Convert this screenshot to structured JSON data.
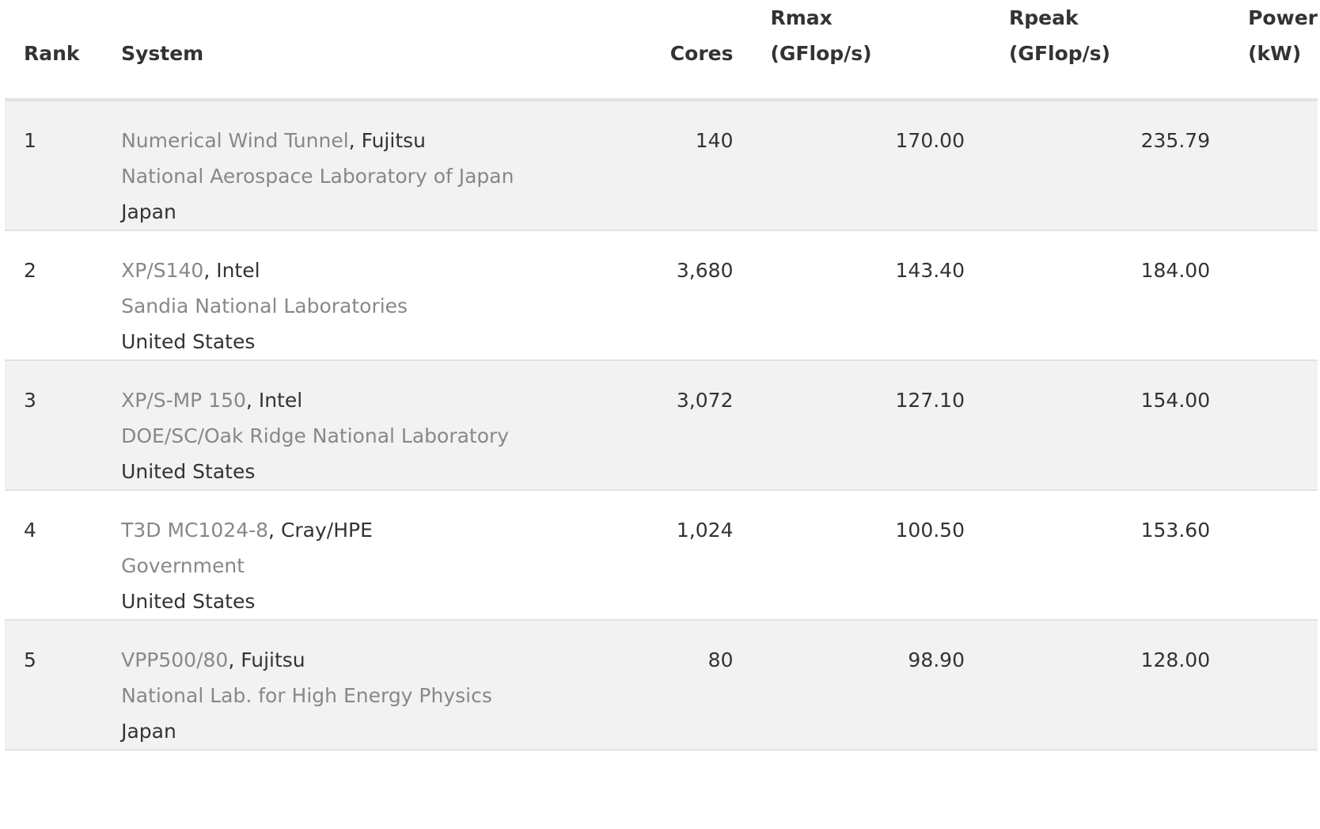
{
  "headers": {
    "rank": "Rank",
    "system": "System",
    "cores": "Cores",
    "rmax_1": "Rmax",
    "rmax_2": "(GFlop/s)",
    "rpeak_1": "Rpeak",
    "rpeak_2": "(GFlop/s)",
    "power_1": "Power",
    "power_2": "(kW)"
  },
  "rows": [
    {
      "rank": "1",
      "system": "Numerical Wind Tunnel",
      "vendor": ", Fujitsu",
      "site": "National Aerospace Laboratory of Japan",
      "country": "Japan",
      "cores": "140",
      "rmax": "170.00",
      "rpeak": "235.79",
      "power": ""
    },
    {
      "rank": "2",
      "system": "XP/S140",
      "vendor": ", Intel",
      "site": "Sandia National Laboratories",
      "country": "United States",
      "cores": "3,680",
      "rmax": "143.40",
      "rpeak": "184.00",
      "power": ""
    },
    {
      "rank": "3",
      "system": "XP/S-MP 150",
      "vendor": ", Intel",
      "site": "DOE/SC/Oak Ridge National Laboratory",
      "country": "United States",
      "cores": "3,072",
      "rmax": "127.10",
      "rpeak": "154.00",
      "power": ""
    },
    {
      "rank": "4",
      "system": "T3D MC1024-8",
      "vendor": ", Cray/HPE",
      "site": "Government",
      "country": "United States",
      "cores": "1,024",
      "rmax": "100.50",
      "rpeak": "153.60",
      "power": ""
    },
    {
      "rank": "5",
      "system": "VPP500/80",
      "vendor": ", Fujitsu",
      "site": "National Lab. for High Energy Physics",
      "country": "Japan",
      "cores": "80",
      "rmax": "98.90",
      "rpeak": "128.00",
      "power": ""
    }
  ]
}
